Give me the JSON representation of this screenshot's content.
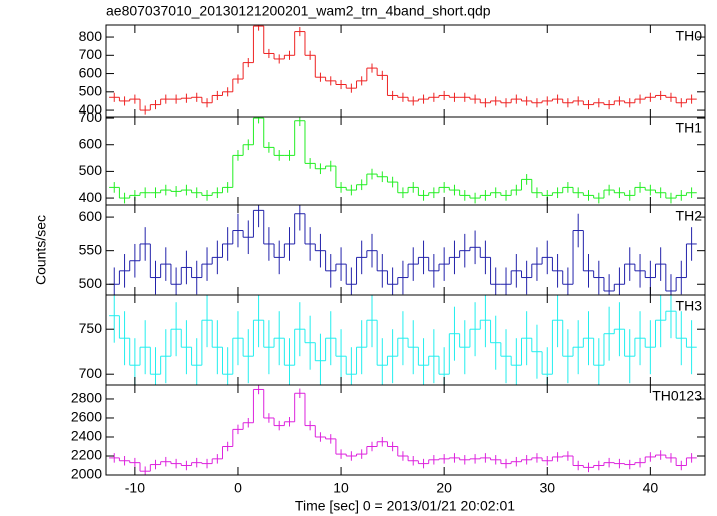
{
  "title": "ae807037010_20130121200201_wam2_trn_4band_short.qdp",
  "ylabel": "Counts/sec",
  "xaxis": {
    "label": "Time [sec] 0 = 2013/01/21 20:02:01",
    "xlim": [
      -12.8,
      45.3
    ],
    "xticks": [
      -10,
      0,
      10,
      20,
      30,
      40
    ],
    "x": [
      -12,
      -11,
      -10,
      -9,
      -8,
      -7,
      -6,
      -5,
      -4,
      -3,
      -2,
      -1,
      0,
      1,
      2,
      3,
      4,
      5,
      6,
      7,
      8,
      9,
      10,
      11,
      12,
      13,
      14,
      15,
      16,
      17,
      18,
      19,
      20,
      21,
      22,
      23,
      24,
      25,
      26,
      27,
      28,
      29,
      30,
      31,
      32,
      33,
      34,
      35,
      36,
      37,
      38,
      39,
      40,
      41,
      42,
      43,
      44
    ]
  },
  "chart_data": [
    {
      "type": "step",
      "name": "TH0",
      "color": "#ee2222",
      "yerr": 25,
      "ylim": [
        362,
        866
      ],
      "yticks": [
        400,
        500,
        600,
        700,
        800
      ],
      "values": [
        470,
        450,
        460,
        400,
        430,
        460,
        460,
        465,
        470,
        440,
        480,
        500,
        570,
        660,
        860,
        710,
        680,
        700,
        830,
        700,
        580,
        560,
        540,
        520,
        560,
        630,
        590,
        480,
        470,
        450,
        460,
        470,
        480,
        470,
        470,
        460,
        440,
        450,
        440,
        460,
        450,
        440,
        450,
        460,
        440,
        450,
        430,
        440,
        430,
        450,
        440,
        460,
        470,
        480,
        470,
        440,
        460
      ]
    },
    {
      "type": "step",
      "name": "TH1",
      "color": "#22ee22",
      "yerr": 20,
      "ylim": [
        374,
        704
      ],
      "yticks": [
        400,
        500,
        600,
        700
      ],
      "values": [
        440,
        400,
        410,
        420,
        420,
        430,
        425,
        430,
        420,
        410,
        420,
        440,
        560,
        600,
        700,
        590,
        560,
        560,
        690,
        530,
        510,
        520,
        440,
        430,
        450,
        490,
        480,
        460,
        420,
        440,
        410,
        420,
        440,
        430,
        410,
        400,
        410,
        420,
        410,
        430,
        470,
        420,
        410,
        420,
        440,
        420,
        410,
        400,
        430,
        420,
        410,
        440,
        430,
        420,
        400,
        410,
        420
      ]
    },
    {
      "type": "step",
      "name": "TH2",
      "color": "#2222aa",
      "yerr": 25,
      "ylim": [
        484,
        618
      ],
      "yticks": [
        500,
        550,
        600
      ],
      "values": [
        500,
        520,
        535,
        560,
        510,
        530,
        500,
        525,
        510,
        530,
        540,
        560,
        580,
        570,
        610,
        560,
        540,
        560,
        605,
        560,
        550,
        520,
        530,
        500,
        540,
        550,
        520,
        500,
        510,
        530,
        540,
        520,
        530,
        540,
        550,
        555,
        540,
        500,
        500,
        520,
        510,
        530,
        540,
        520,
        500,
        580,
        520,
        510,
        490,
        500,
        530,
        520,
        510,
        530,
        490,
        510,
        560
      ]
    },
    {
      "type": "step",
      "name": "TH3",
      "color": "#22eeee",
      "yerr": 30,
      "ylim": [
        688,
        788
      ],
      "yticks": [
        700,
        750
      ],
      "values": [
        765,
        740,
        710,
        730,
        700,
        720,
        750,
        730,
        710,
        760,
        730,
        700,
        740,
        720,
        760,
        730,
        740,
        710,
        750,
        735,
        715,
        740,
        720,
        700,
        730,
        760,
        710,
        720,
        740,
        730,
        710,
        720,
        700,
        745,
        730,
        750,
        760,
        735,
        720,
        710,
        740,
        725,
        700,
        760,
        720,
        730,
        740,
        710,
        745,
        750,
        720,
        740,
        730,
        760,
        770,
        740,
        730
      ]
    },
    {
      "type": "step",
      "name": "TH0123",
      "color": "#dd22dd",
      "yerr": 50,
      "ylim": [
        2000,
        2947
      ],
      "yticks": [
        2000,
        2200,
        2400,
        2600,
        2800
      ],
      "values": [
        2180,
        2150,
        2130,
        2040,
        2110,
        2140,
        2120,
        2100,
        2130,
        2120,
        2170,
        2300,
        2480,
        2550,
        2900,
        2600,
        2520,
        2560,
        2860,
        2520,
        2400,
        2380,
        2220,
        2200,
        2220,
        2300,
        2350,
        2300,
        2200,
        2150,
        2120,
        2160,
        2170,
        2180,
        2160,
        2170,
        2180,
        2160,
        2120,
        2140,
        2160,
        2180,
        2150,
        2190,
        2200,
        2100,
        2080,
        2100,
        2130,
        2120,
        2110,
        2130,
        2190,
        2210,
        2180,
        2100,
        2180
      ]
    }
  ]
}
